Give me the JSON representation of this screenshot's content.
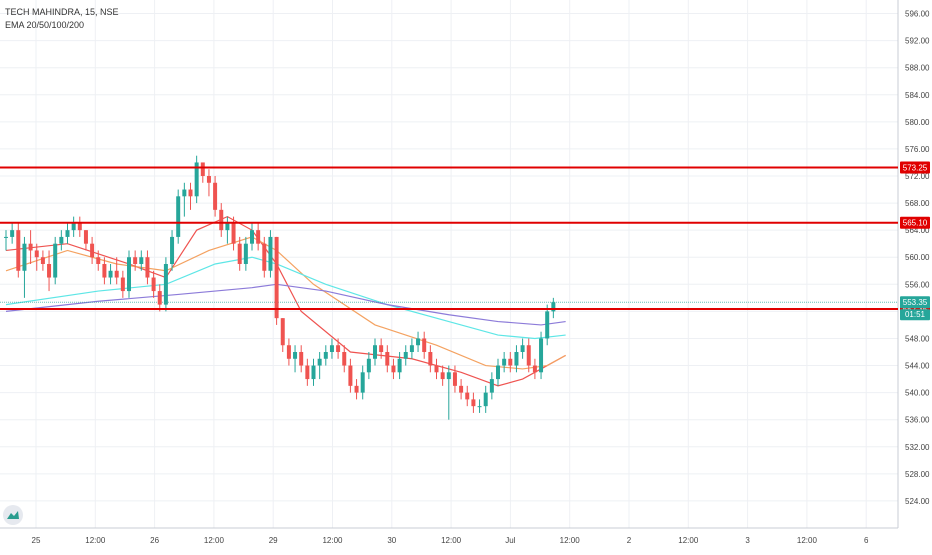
{
  "header": {
    "symbol_line": "TECH MAHINDRA, 15, NSE",
    "indicator_line": "EMA 20/50/100/200"
  },
  "colors": {
    "up": "#26a69a",
    "down": "#ef5350",
    "level_line": "#e00000",
    "ema20": "#ef5350",
    "ema50": "#f4a261",
    "ema100": "#5ee6e6",
    "ema200": "#8c7bd9",
    "price_marker": "#26a69a"
  },
  "chart_data": {
    "type": "candlestick",
    "title": "",
    "y_range": [
      520,
      598
    ],
    "y_ticks": [
      "524.00",
      "528.00",
      "532.00",
      "536.00",
      "540.00",
      "544.00",
      "548.00",
      "552.00",
      "556.00",
      "560.00",
      "564.00",
      "568.00",
      "572.00",
      "576.00",
      "580.00",
      "584.00",
      "588.00",
      "592.00",
      "596.00"
    ],
    "x_ticks": [
      "25",
      "12:00",
      "26",
      "12:00",
      "29",
      "12:00",
      "30",
      "12:00",
      "Jul",
      "12:00",
      "2",
      "12:00",
      "3",
      "12:00",
      "6"
    ],
    "horizontal_levels": [
      {
        "price": 573.25,
        "label": "573.25"
      },
      {
        "price": 565.1,
        "label": "565.10"
      },
      {
        "price": 552.35,
        "label": "552.35"
      }
    ],
    "last_price": {
      "price": 553.35,
      "label": "553.35",
      "countdown": "01:51"
    },
    "candles": [
      [
        563,
        564,
        561,
        563
      ],
      [
        563,
        565,
        562,
        564
      ],
      [
        564,
        565,
        557,
        558
      ],
      [
        558,
        563,
        554,
        562
      ],
      [
        562,
        564,
        559,
        561
      ],
      [
        561,
        562,
        558,
        560
      ],
      [
        560,
        561,
        558,
        559
      ],
      [
        559,
        561,
        555,
        557
      ],
      [
        557,
        563,
        556,
        562
      ],
      [
        562,
        564,
        561,
        563
      ],
      [
        563,
        565,
        562,
        564
      ],
      [
        564,
        566,
        563,
        565
      ],
      [
        565,
        566,
        563,
        564
      ],
      [
        564,
        564,
        561,
        562
      ],
      [
        562,
        563,
        559,
        560
      ],
      [
        560,
        561,
        558,
        559
      ],
      [
        559,
        560,
        556,
        557
      ],
      [
        557,
        559,
        556,
        558
      ],
      [
        558,
        560,
        556,
        557
      ],
      [
        557,
        558,
        554,
        555
      ],
      [
        555,
        561,
        554,
        560
      ],
      [
        560,
        561,
        558,
        559
      ],
      [
        559,
        561,
        558,
        560
      ],
      [
        560,
        561,
        556,
        557
      ],
      [
        557,
        558,
        554,
        555
      ],
      [
        555,
        556,
        552,
        553
      ],
      [
        553,
        560,
        552,
        559
      ],
      [
        559,
        564,
        558,
        563
      ],
      [
        563,
        570,
        562,
        569
      ],
      [
        569,
        571,
        566,
        570
      ],
      [
        570,
        571,
        567,
        569
      ],
      [
        569,
        575,
        568,
        574
      ],
      [
        574,
        574,
        571,
        572
      ],
      [
        572,
        573,
        569,
        571
      ],
      [
        571,
        572,
        566,
        567
      ],
      [
        567,
        568,
        563,
        564
      ],
      [
        564,
        566,
        562,
        565
      ],
      [
        565,
        566,
        561,
        562
      ],
      [
        562,
        563,
        558,
        559
      ],
      [
        559,
        563,
        558,
        562
      ],
      [
        562,
        565,
        561,
        564
      ],
      [
        564,
        565,
        561,
        562
      ],
      [
        562,
        563,
        557,
        558
      ],
      [
        558,
        564,
        557,
        563
      ],
      [
        563,
        563,
        550,
        551
      ],
      [
        551,
        551,
        546,
        547
      ],
      [
        547,
        548,
        544,
        545
      ],
      [
        545,
        547,
        543,
        546
      ],
      [
        546,
        547,
        543,
        544
      ],
      [
        544,
        545,
        541,
        542
      ],
      [
        542,
        545,
        541,
        544
      ],
      [
        544,
        546,
        542,
        545
      ],
      [
        545,
        547,
        544,
        546
      ],
      [
        546,
        548,
        545,
        547
      ],
      [
        547,
        548,
        545,
        546
      ],
      [
        546,
        547,
        543,
        544
      ],
      [
        544,
        545,
        540,
        541
      ],
      [
        541,
        542,
        539,
        540
      ],
      [
        540,
        544,
        539,
        543
      ],
      [
        543,
        546,
        542,
        545
      ],
      [
        545,
        548,
        544,
        547
      ],
      [
        547,
        548,
        545,
        546
      ],
      [
        546,
        547,
        543,
        544
      ],
      [
        544,
        545,
        542,
        543
      ],
      [
        543,
        546,
        542,
        545
      ],
      [
        545,
        547,
        544,
        546
      ],
      [
        546,
        548,
        545,
        547
      ],
      [
        547,
        549,
        546,
        548
      ],
      [
        548,
        549,
        545,
        546
      ],
      [
        546,
        547,
        543,
        544
      ],
      [
        544,
        545,
        542,
        543
      ],
      [
        543,
        544,
        541,
        542
      ],
      [
        542,
        544,
        536,
        543
      ],
      [
        543,
        544,
        540,
        541
      ],
      [
        541,
        542,
        539,
        540
      ],
      [
        540,
        541,
        538,
        539
      ],
      [
        539,
        540,
        537,
        538
      ],
      [
        538,
        539,
        537,
        538
      ],
      [
        538,
        541,
        537,
        540
      ],
      [
        540,
        543,
        539,
        542
      ],
      [
        542,
        545,
        541,
        544
      ],
      [
        544,
        546,
        543,
        545
      ],
      [
        545,
        546,
        543,
        544
      ],
      [
        544,
        547,
        543,
        546
      ],
      [
        546,
        548,
        545,
        547
      ],
      [
        547,
        548,
        543,
        544
      ],
      [
        544,
        545,
        542,
        543
      ],
      [
        543,
        549,
        542,
        548
      ],
      [
        548,
        553,
        547,
        552
      ],
      [
        552,
        554,
        551,
        553.35
      ]
    ],
    "ema_series": [
      {
        "key": "ema20",
        "values": [
          [
            0,
            561
          ],
          [
            10,
            562
          ],
          [
            20,
            559
          ],
          [
            26,
            557
          ],
          [
            31,
            564
          ],
          [
            36,
            566
          ],
          [
            40,
            564
          ],
          [
            44,
            559
          ],
          [
            48,
            552
          ],
          [
            56,
            546
          ],
          [
            66,
            545
          ],
          [
            74,
            543
          ],
          [
            80,
            541
          ],
          [
            84,
            542
          ],
          [
            88,
            544
          ],
          [
            91,
            545.5
          ]
        ]
      },
      {
        "key": "ema50",
        "values": [
          [
            0,
            558
          ],
          [
            10,
            561
          ],
          [
            18,
            559
          ],
          [
            26,
            558
          ],
          [
            33,
            561
          ],
          [
            40,
            563
          ],
          [
            44,
            561
          ],
          [
            50,
            556
          ],
          [
            60,
            550
          ],
          [
            70,
            547
          ],
          [
            78,
            544
          ],
          [
            84,
            543.5
          ],
          [
            88,
            544
          ],
          [
            91,
            545.5
          ]
        ]
      },
      {
        "key": "ema100",
        "values": [
          [
            0,
            553
          ],
          [
            15,
            555
          ],
          [
            26,
            556
          ],
          [
            34,
            559
          ],
          [
            40,
            560
          ],
          [
            44,
            559
          ],
          [
            52,
            556
          ],
          [
            62,
            553
          ],
          [
            72,
            550.5
          ],
          [
            80,
            548.5
          ],
          [
            86,
            548
          ],
          [
            91,
            548.5
          ]
        ]
      },
      {
        "key": "ema200",
        "values": [
          [
            0,
            552
          ],
          [
            15,
            553.5
          ],
          [
            28,
            554.5
          ],
          [
            40,
            555.5
          ],
          [
            44,
            556
          ],
          [
            52,
            555
          ],
          [
            62,
            553
          ],
          [
            72,
            551.5
          ],
          [
            80,
            550.5
          ],
          [
            87,
            550
          ],
          [
            91,
            550.5
          ]
        ]
      }
    ]
  }
}
